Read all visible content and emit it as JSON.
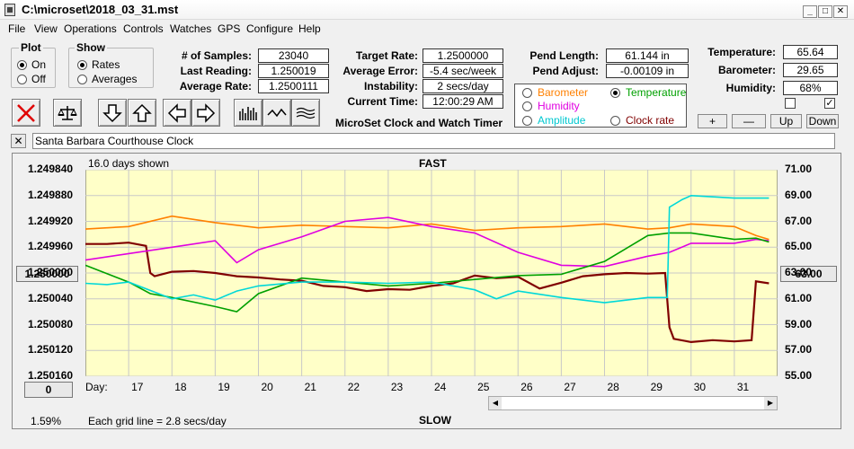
{
  "window": {
    "title": "C:\\microset\\2018_03_31.mst",
    "controls": [
      "_",
      "□",
      "✕"
    ]
  },
  "menu": [
    "File",
    "View",
    "Operations",
    "Controls",
    "Watches",
    "GPS",
    "Configure",
    "Help"
  ],
  "plot_group": {
    "title": "Plot",
    "on": "On",
    "off": "Off",
    "selected": "On"
  },
  "show_group": {
    "title": "Show",
    "rates": "Rates",
    "averages": "Averages",
    "selected": "Rates"
  },
  "stats": {
    "samples_label": "# of Samples:",
    "samples": "23040",
    "last_reading_label": "Last Reading:",
    "last_reading": "1.250019",
    "average_rate_label": "Average Rate:",
    "average_rate": "1.2500111",
    "target_rate_label": "Target Rate:",
    "target_rate": "1.2500000",
    "average_error_label": "Average Error:",
    "average_error": "-5.4 sec/week",
    "instability_label": "Instability:",
    "instability": "2 secs/day",
    "current_time_label": "Current Time:",
    "current_time": "12:00:29 AM",
    "pend_length_label": "Pend Length:",
    "pend_length": "61.144 in",
    "pend_adjust_label": "Pend Adjust:",
    "pend_adjust": "-0.00109 in",
    "temperature_label": "Temperature:",
    "temperature": "65.64",
    "barometer_label": "Barometer:",
    "barometer": "29.65",
    "humidity_label": "Humidity:",
    "humidity": "68%"
  },
  "app_caption": "MicroSet Clock and Watch Timer",
  "sensor_select": {
    "barometer": "Barometer",
    "temperature": "Temperature",
    "humidity": "Humidity",
    "amplitude": "Amplitude",
    "clock_rate": "Clock rate",
    "selected": "Temperature",
    "colors": {
      "barometer": "#ff8000",
      "temperature": "#00a000",
      "humidity": "#e000e0",
      "amplitude": "#00d8d8",
      "clock_rate": "#800000"
    }
  },
  "adjust_buttons": [
    "+",
    "—",
    "Up",
    "Down"
  ],
  "toolbar_icons": [
    "clear-x-icon",
    "scale-icon",
    "arrow-down-icon",
    "arrow-up-icon",
    "arrow-left-icon",
    "arrow-right-icon",
    "histogram-icon",
    "wave-icon",
    "multiwave-icon"
  ],
  "watch_name": "Santa Barbara Courthouse Clock",
  "chart": {
    "days_shown": "16.0 days shown",
    "top_label": "FAST",
    "bottom_label": "SLOW",
    "grid_note": "Each grid line = 2.8 secs/day",
    "percent": "1.59%",
    "left_offset_button": "0",
    "left_center_button": "1.250000",
    "right_center_button": "63.00",
    "day_label": "Day:"
  },
  "chart_data": {
    "type": "line",
    "x_label": "Day:",
    "x_ticks": [
      "17",
      "18",
      "19",
      "20",
      "21",
      "22",
      "23",
      "24",
      "25",
      "26",
      "27",
      "28",
      "29",
      "30",
      "31"
    ],
    "x_range": [
      16.0,
      32.0
    ],
    "y_left_ticks": [
      "1.249840",
      "1.249880",
      "1.249920",
      "1.249960",
      "1.250000",
      "1.250040",
      "1.250080",
      "1.250120",
      "1.250160"
    ],
    "y_left_range": [
      1.24984,
      1.25016
    ],
    "y_left_inverted": true,
    "y_right_ticks": [
      "71.00",
      "69.00",
      "67.00",
      "65.00",
      "63.00",
      "61.00",
      "59.00",
      "57.00",
      "55.00"
    ],
    "y_right_range": [
      55.0,
      71.0
    ],
    "grid": true,
    "background": "#ffffc8",
    "series": [
      {
        "name": "Clock rate",
        "color": "#800000",
        "axis": "left",
        "x": [
          16.0,
          16.5,
          17.0,
          17.4,
          17.5,
          17.6,
          18,
          18.5,
          19,
          19.5,
          20,
          20.5,
          21,
          21.5,
          22,
          22.5,
          23,
          23.5,
          24,
          24.5,
          25,
          25.5,
          26,
          26.5,
          27,
          27.5,
          28,
          28.5,
          29,
          29.4,
          29.5,
          29.6,
          30,
          30.5,
          31,
          31.4,
          31.5,
          31.8
        ],
        "y": [
          1.249955,
          1.249955,
          1.249953,
          1.249958,
          1.25,
          1.250005,
          1.249998,
          1.249997,
          1.25,
          1.250005,
          1.250007,
          1.25001,
          1.250012,
          1.25002,
          1.250022,
          1.250028,
          1.250025,
          1.250026,
          1.25002,
          1.250016,
          1.250004,
          1.250008,
          1.250006,
          1.250024,
          1.250015,
          1.250005,
          1.250002,
          1.25,
          1.250001,
          1.25,
          1.250084,
          1.250102,
          1.250107,
          1.250104,
          1.250106,
          1.250104,
          1.250013,
          1.250016
        ]
      },
      {
        "name": "Barometer",
        "color": "#ff8000",
        "axis": "right",
        "x": [
          16,
          17,
          18,
          19,
          20,
          21,
          22,
          23,
          24,
          25,
          26,
          27,
          28,
          29,
          29.5,
          30,
          31,
          31.5,
          31.8
        ],
        "y": [
          66.4,
          66.6,
          67.4,
          66.9,
          66.5,
          66.7,
          66.6,
          66.5,
          66.8,
          66.3,
          66.5,
          66.6,
          66.8,
          66.4,
          66.5,
          66.8,
          66.6,
          65.9,
          65.6
        ]
      },
      {
        "name": "Humidity",
        "color": "#e000e0",
        "axis": "right",
        "x": [
          16,
          17,
          18,
          19,
          19.5,
          20,
          21,
          22,
          23,
          24,
          25,
          26,
          27,
          28,
          29,
          29.5,
          30,
          31,
          31.5,
          31.8
        ],
        "y": [
          64.0,
          64.5,
          65.0,
          65.5,
          63.8,
          64.8,
          65.8,
          67.0,
          67.3,
          66.6,
          66.1,
          64.6,
          63.6,
          63.5,
          64.3,
          64.6,
          65.3,
          65.3,
          65.6,
          65.5
        ]
      },
      {
        "name": "Temperature",
        "color": "#00a000",
        "axis": "right",
        "x": [
          16,
          17,
          17.5,
          18,
          19,
          19.5,
          20,
          21,
          22,
          23,
          24,
          25,
          26,
          27,
          28,
          28.5,
          29,
          29.5,
          30,
          31,
          31.5,
          31.8
        ],
        "y": [
          63.6,
          62.3,
          61.4,
          61.1,
          60.4,
          60.0,
          61.4,
          62.6,
          62.3,
          62.0,
          62.2,
          62.5,
          62.8,
          62.9,
          63.9,
          64.9,
          65.9,
          66.1,
          66.1,
          65.6,
          65.7,
          65.4
        ]
      },
      {
        "name": "Amplitude",
        "color": "#00d8d8",
        "axis": "right",
        "x": [
          16,
          16.5,
          17,
          18,
          18.5,
          19,
          19.5,
          20,
          21,
          22,
          23,
          24,
          25,
          25.5,
          26,
          27,
          28,
          29,
          29.45,
          29.5,
          29.8,
          30,
          31,
          31.8
        ],
        "y": [
          62.2,
          62.1,
          62.3,
          61.0,
          61.3,
          60.9,
          61.6,
          62.0,
          62.3,
          62.3,
          62.2,
          62.3,
          61.7,
          61.0,
          61.6,
          61.1,
          60.7,
          61.1,
          61.1,
          68.1,
          68.7,
          69.0,
          68.8,
          68.8
        ]
      }
    ]
  }
}
